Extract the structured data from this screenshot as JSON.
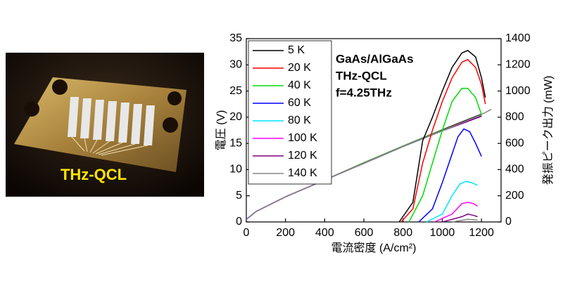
{
  "photo": {
    "label": "THz-QCL"
  },
  "chart_data": {
    "type": "line",
    "annotations": [
      "GaAs/AlGaAs",
      "THz-QCL",
      "f=4.25THz"
    ],
    "xlabel": "電流密度 (A/cm²)",
    "ylabel": "電圧 (V)",
    "y2label": "発振ピーク出力 (mW)",
    "xlim": [
      0,
      1300
    ],
    "xticks": [
      0,
      200,
      400,
      600,
      800,
      1000,
      1200
    ],
    "ylim": [
      0,
      35
    ],
    "yticks": [
      0,
      5,
      10,
      15,
      20,
      25,
      30,
      35
    ],
    "y2lim": [
      0,
      1400
    ],
    "y2ticks": [
      0,
      200,
      400,
      600,
      800,
      1000,
      1200,
      1400
    ],
    "legend": "upper left",
    "series": [
      {
        "name": "5 K",
        "color": "#000000",
        "x": [
          0,
          50,
          200,
          400,
          600,
          800,
          1000,
          1200
        ],
        "values": [
          0.5,
          2,
          4.8,
          8,
          11.3,
          14.5,
          17.6,
          20.6
        ]
      },
      {
        "name": "20 K",
        "color": "#ff0000",
        "x": [
          0,
          50,
          200,
          400,
          600,
          800,
          1000,
          1200
        ],
        "values": [
          0.5,
          2,
          4.8,
          8,
          11.3,
          14.5,
          17.5,
          20.4
        ]
      },
      {
        "name": "40 K",
        "color": "#00dd00",
        "x": [
          0,
          50,
          200,
          400,
          600,
          800,
          1000,
          1200
        ],
        "values": [
          0.5,
          2,
          4.8,
          8,
          11.3,
          14.5,
          17.5,
          20.3
        ]
      },
      {
        "name": "60 K",
        "color": "#0000ff",
        "x": [
          0,
          50,
          200,
          400,
          600,
          800,
          1000,
          1200
        ],
        "values": [
          0.5,
          2,
          4.8,
          8,
          11.2,
          14.4,
          17.4,
          20.2
        ]
      },
      {
        "name": "80 K",
        "color": "#00e5ff",
        "x": [
          0,
          50,
          200,
          400,
          600,
          800,
          1000,
          1200
        ],
        "values": [
          0.5,
          2,
          4.8,
          8,
          11.2,
          14.4,
          17.4,
          20.2
        ]
      },
      {
        "name": "100 K",
        "color": "#ff00ff",
        "x": [
          0,
          50,
          200,
          400,
          600,
          800,
          1000,
          1200
        ],
        "values": [
          0.5,
          2,
          4.8,
          8,
          11.2,
          14.4,
          17.4,
          20.2
        ]
      },
      {
        "name": "120 K",
        "color": "#800080",
        "x": [
          0,
          50,
          200,
          400,
          600,
          800,
          1000,
          1200
        ],
        "values": [
          0.5,
          2,
          4.8,
          8,
          11.2,
          14.4,
          17.4,
          20.2
        ]
      },
      {
        "name": "140 K",
        "color": "#888888",
        "x": [
          0,
          50,
          200,
          400,
          600,
          800,
          1000,
          1200,
          1250
        ],
        "values": [
          0.5,
          2,
          4.8,
          8,
          11.2,
          14.4,
          17.4,
          20.5,
          21.5
        ]
      }
    ],
    "power_series": [
      {
        "axis": "y2",
        "color": "#000000",
        "x": [
          780,
          850,
          900,
          950,
          1000,
          1050,
          1100,
          1130,
          1170,
          1200,
          1220
        ],
        "values": [
          0,
          150,
          620,
          800,
          1000,
          1180,
          1290,
          1310,
          1260,
          1100,
          950
        ]
      },
      {
        "axis": "y2",
        "color": "#ff0000",
        "x": [
          790,
          850,
          900,
          950,
          1000,
          1050,
          1100,
          1130,
          1170,
          1200,
          1220
        ],
        "values": [
          0,
          100,
          450,
          700,
          920,
          1100,
          1220,
          1240,
          1180,
          1050,
          900
        ]
      },
      {
        "axis": "y2",
        "color": "#00dd00",
        "x": [
          830,
          900,
          950,
          1000,
          1050,
          1100,
          1130,
          1170,
          1200
        ],
        "values": [
          0,
          200,
          450,
          700,
          920,
          1020,
          1020,
          950,
          820
        ]
      },
      {
        "axis": "y2",
        "color": "#0000ff",
        "x": [
          880,
          950,
          1000,
          1050,
          1080,
          1110,
          1140,
          1170,
          1200
        ],
        "values": [
          0,
          100,
          300,
          520,
          650,
          710,
          690,
          600,
          500
        ]
      },
      {
        "axis": "y2",
        "color": "#00e5ff",
        "x": [
          920,
          1000,
          1050,
          1090,
          1120,
          1150,
          1180
        ],
        "values": [
          0,
          60,
          200,
          290,
          310,
          300,
          280
        ]
      },
      {
        "axis": "y2",
        "color": "#ff00ff",
        "x": [
          960,
          1050,
          1100,
          1130,
          1160,
          1180
        ],
        "values": [
          0,
          60,
          140,
          150,
          140,
          120
        ]
      },
      {
        "axis": "y2",
        "color": "#800080",
        "x": [
          1000,
          1100,
          1130,
          1160,
          1180
        ],
        "values": [
          0,
          40,
          60,
          50,
          40
        ]
      },
      {
        "axis": "y2",
        "color": "#888888",
        "x": [
          1050,
          1130,
          1180
        ],
        "values": [
          0,
          20,
          15
        ]
      }
    ]
  }
}
